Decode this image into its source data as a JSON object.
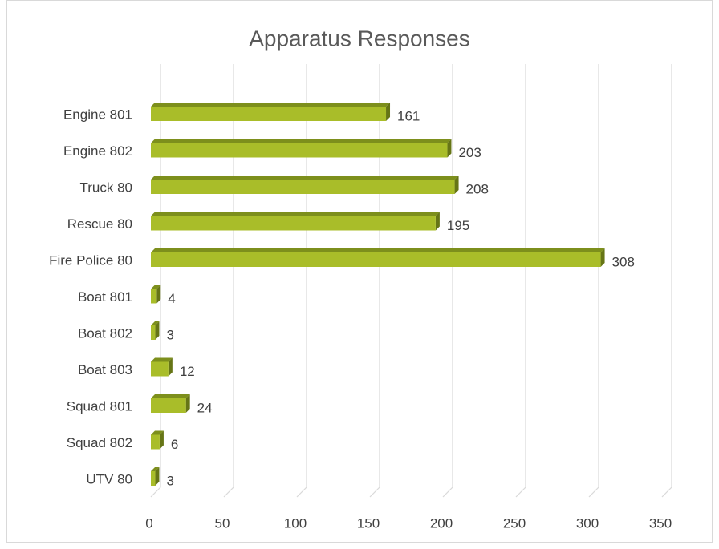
{
  "chart_data": {
    "type": "bar3d",
    "orientation": "horizontal",
    "title": "Apparatus Responses",
    "categories": [
      "Engine 801",
      "Engine 802",
      "Truck 80",
      "Rescue 80",
      "Fire Police 80",
      "Boat 801",
      "Boat 802",
      "Boat 803",
      "Squad 801",
      "Squad 802",
      "UTV 80"
    ],
    "values": [
      161,
      203,
      208,
      195,
      308,
      4,
      3,
      12,
      24,
      6,
      3
    ],
    "color": "#a9bd29",
    "xlim": [
      0,
      350
    ],
    "xticks": [
      0,
      50,
      100,
      150,
      200,
      250,
      300,
      350
    ],
    "grid": true
  }
}
